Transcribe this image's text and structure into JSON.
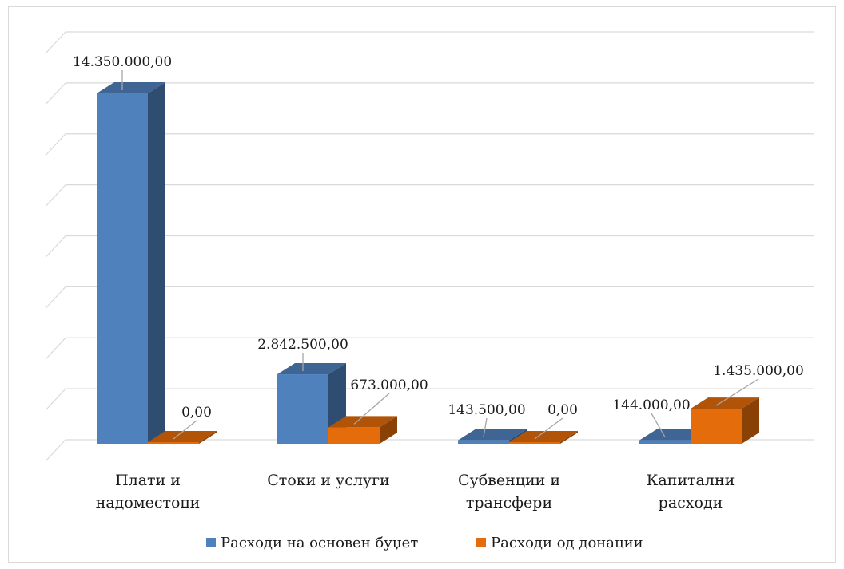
{
  "chart_data": {
    "type": "bar",
    "title": "",
    "xlabel": "",
    "ylabel": "",
    "ylim": [
      0,
      16000000
    ],
    "grid": true,
    "legend_position": "bottom",
    "categories": [
      [
        "Плати и",
        "надоместоци"
      ],
      [
        "Стоки и услуги"
      ],
      [
        "Субвенции и",
        "трансфери"
      ],
      [
        "Капитални",
        "расходи"
      ]
    ],
    "series": [
      {
        "name": "Расходи на основен буџет",
        "color": "#4f81bd",
        "values": [
          14350000,
          2842500,
          143500,
          144000
        ],
        "labels": [
          "14.350.000,00",
          "2.842.500,00",
          "143.500,00",
          "144.000,00"
        ]
      },
      {
        "name": "Расходи од донации",
        "color": "#e46c0a",
        "values": [
          0,
          673000,
          0,
          1435000
        ],
        "labels": [
          "0,00",
          "673.000,00",
          "0,00",
          "1.435.000,00"
        ]
      }
    ]
  }
}
